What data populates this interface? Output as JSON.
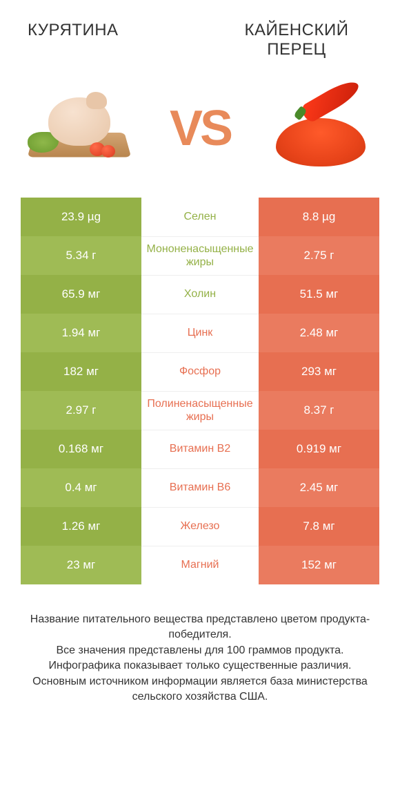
{
  "header": {
    "left_title": "Курятина",
    "right_title": "Кайенский перец",
    "vs": "VS"
  },
  "colors": {
    "left": "#94b147",
    "right": "#e76f51",
    "left_alt": "#9fbb55",
    "right_alt": "#ea7b5f",
    "mid_text_left": "#94b147",
    "mid_text_right": "#e76f51"
  },
  "rows": [
    {
      "left": "23.9 µg",
      "label": "Селен",
      "right": "8.8 µg",
      "winner": "left"
    },
    {
      "left": "5.34 г",
      "label": "Мононенасыщенные жиры",
      "right": "2.75 г",
      "winner": "left"
    },
    {
      "left": "65.9 мг",
      "label": "Холин",
      "right": "51.5 мг",
      "winner": "left"
    },
    {
      "left": "1.94 мг",
      "label": "Цинк",
      "right": "2.48 мг",
      "winner": "right"
    },
    {
      "left": "182 мг",
      "label": "Фосфор",
      "right": "293 мг",
      "winner": "right"
    },
    {
      "left": "2.97 г",
      "label": "Полиненасыщенные жиры",
      "right": "8.37 г",
      "winner": "right"
    },
    {
      "left": "0.168 мг",
      "label": "Витамин B2",
      "right": "0.919 мг",
      "winner": "right"
    },
    {
      "left": "0.4 мг",
      "label": "Витамин B6",
      "right": "2.45 мг",
      "winner": "right"
    },
    {
      "left": "1.26 мг",
      "label": "Железо",
      "right": "7.8 мг",
      "winner": "right"
    },
    {
      "left": "23 мг",
      "label": "Магний",
      "right": "152 мг",
      "winner": "right"
    }
  ],
  "footer": {
    "line1": "Название питательного вещества представлено цветом продукта-победителя.",
    "line2": "Все значения представлены для 100 граммов продукта.",
    "line3": "Инфографика показывает только существенные различия.",
    "line4": "Основным источником информации является база министерства сельского хозяйства США."
  }
}
